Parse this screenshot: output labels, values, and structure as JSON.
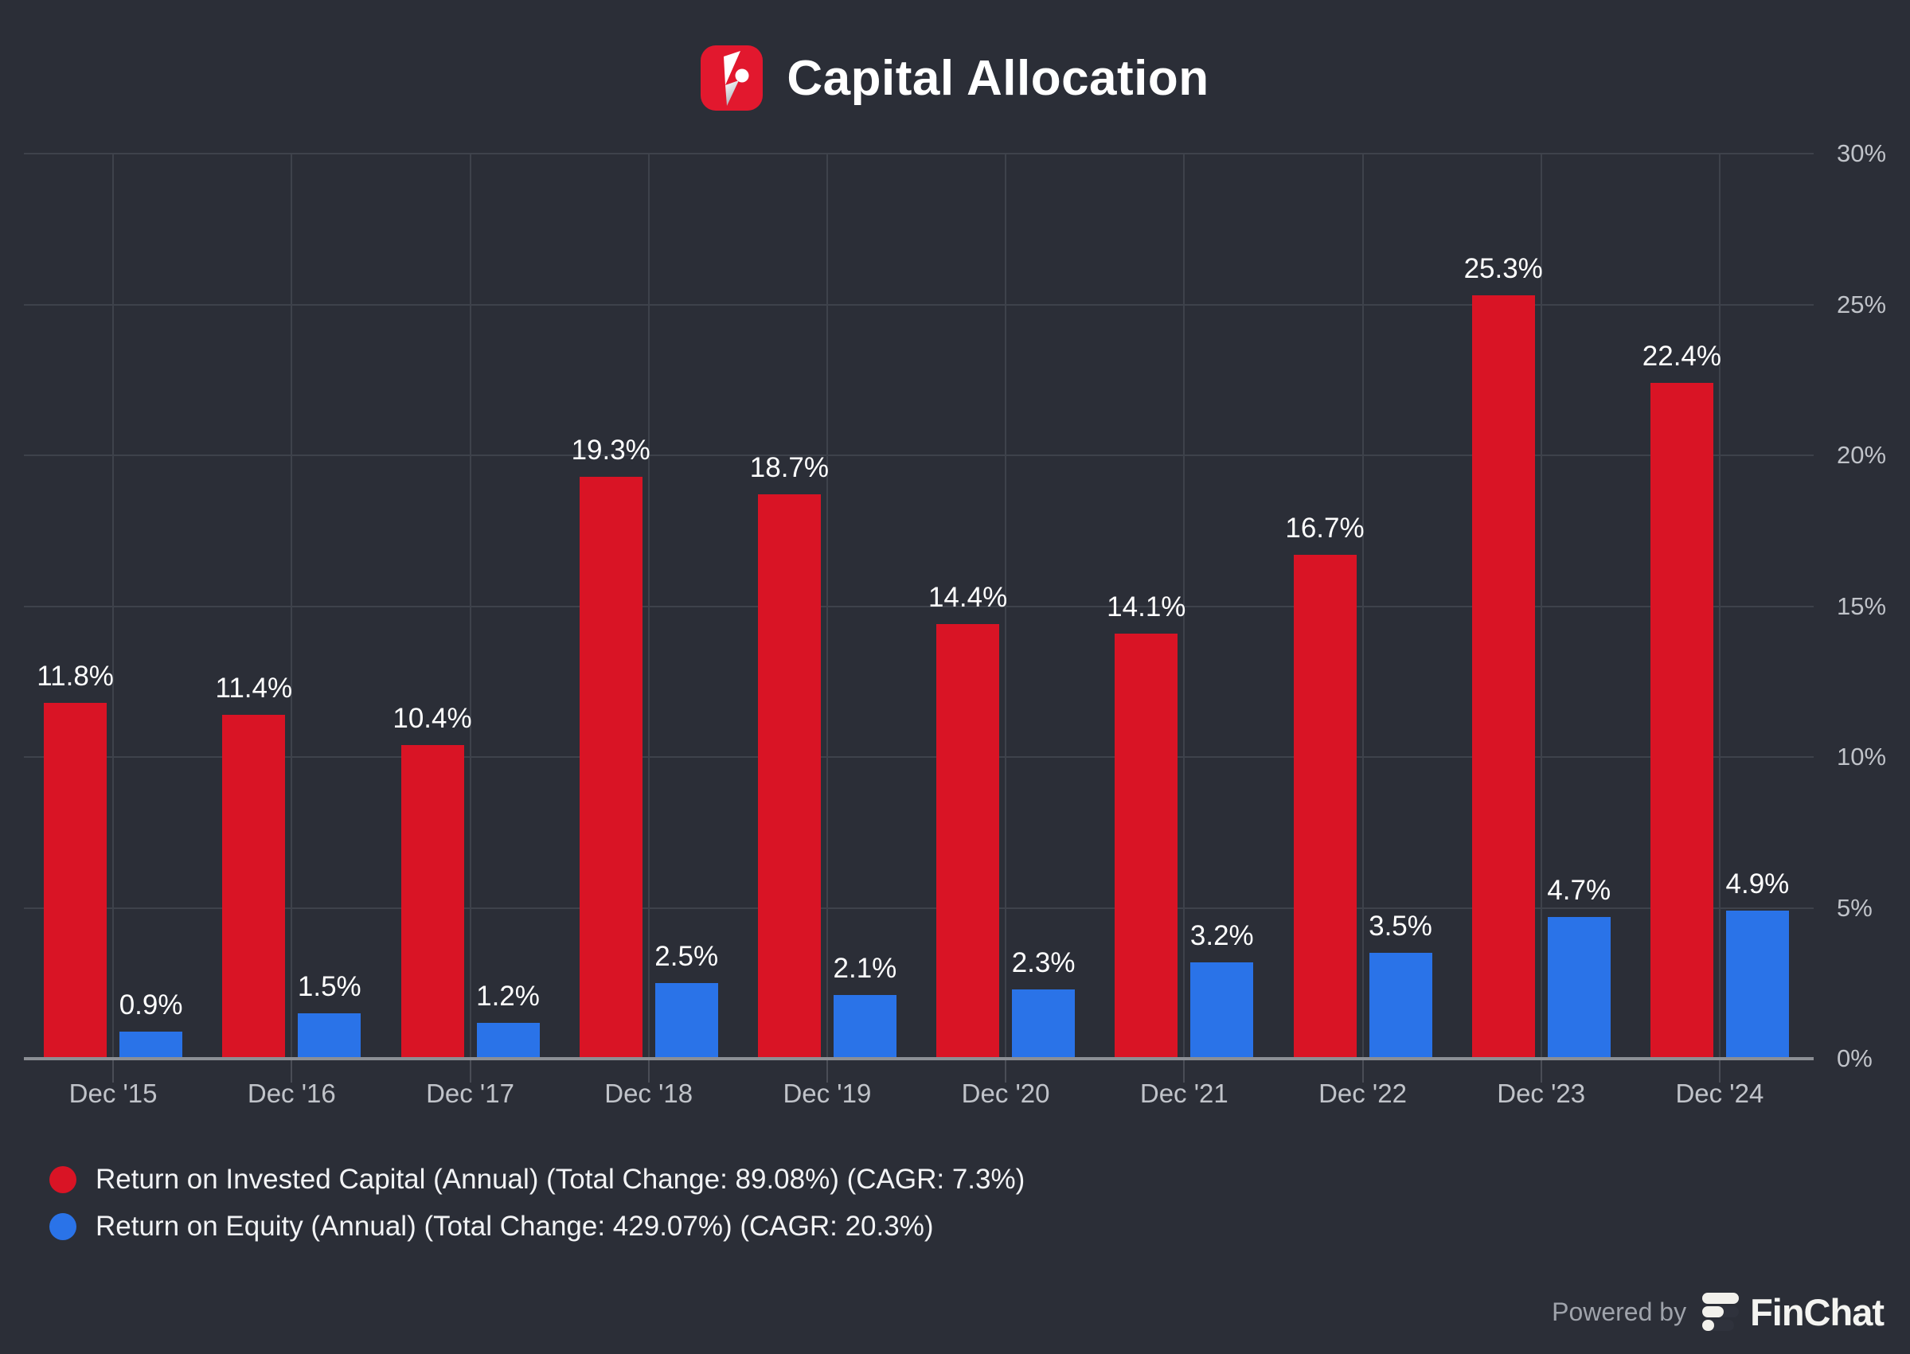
{
  "title": "Capital Allocation",
  "watermark": {
    "powered_by": "Powered by",
    "brand": "FinChat"
  },
  "colors": {
    "background": "#2b2e37",
    "grid": "#3e424b",
    "axis_line": "#8c8f95",
    "axis_label": "#c0c3c9",
    "value_label": "#ffffff",
    "legend_text": "#f2f3f5",
    "powered_by_text": "#9fa3ab",
    "brand_text": "#f4f4f1",
    "roic_red": "#d91425",
    "roe_blue": "#2a73e8",
    "logo_red": "#e2182e",
    "logo_cream": "#f2f1ec",
    "logo_dark": "#2f323c"
  },
  "chart_data": {
    "type": "bar",
    "title": "Capital Allocation",
    "categories": [
      "Dec '15",
      "Dec '16",
      "Dec '17",
      "Dec '18",
      "Dec '19",
      "Dec '20",
      "Dec '21",
      "Dec '22",
      "Dec '23",
      "Dec '24"
    ],
    "series": [
      {
        "name": "Return on Invested Capital (Annual) (Total Change: 89.08%) (CAGR: 7.3%)",
        "color": "#d91425",
        "values": [
          11.8,
          11.4,
          10.4,
          19.3,
          18.7,
          14.4,
          14.1,
          16.7,
          25.3,
          22.4
        ],
        "labels": [
          "11.8%",
          "11.4%",
          "10.4%",
          "19.3%",
          "18.7%",
          "14.4%",
          "14.1%",
          "16.7%",
          "25.3%",
          "22.4%"
        ]
      },
      {
        "name": "Return on Equity (Annual) (Total Change: 429.07%) (CAGR: 20.3%)",
        "color": "#2a73e8",
        "values": [
          0.9,
          1.5,
          1.2,
          2.5,
          2.1,
          2.3,
          3.2,
          3.5,
          4.7,
          4.9
        ],
        "labels": [
          "0.9%",
          "1.5%",
          "1.2%",
          "2.5%",
          "2.1%",
          "2.3%",
          "3.2%",
          "3.5%",
          "4.7%",
          "4.9%"
        ]
      }
    ],
    "value_suffix": "%",
    "xlabel": "",
    "ylabel": "",
    "ylim": [
      0,
      30
    ],
    "y_ticks": [
      {
        "value": 0,
        "label": "0%"
      },
      {
        "value": 5,
        "label": "5%"
      },
      {
        "value": 10,
        "label": "10%"
      },
      {
        "value": 15,
        "label": "15%"
      },
      {
        "value": 20,
        "label": "20%"
      },
      {
        "value": 25,
        "label": "25%"
      },
      {
        "value": 30,
        "label": "30%"
      }
    ],
    "grid": true,
    "y_axis_side": "right",
    "legend_position": "bottom-left"
  }
}
